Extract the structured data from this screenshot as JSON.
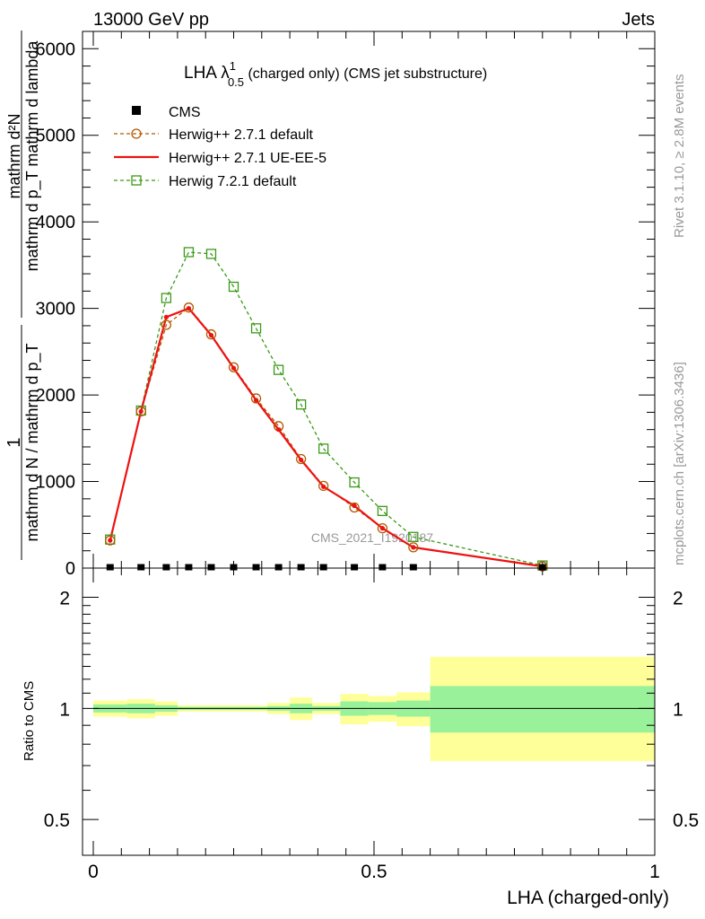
{
  "header": {
    "left": "13000 GeV pp",
    "right": "Jets"
  },
  "side_text": {
    "top": "Rivet 3.1.10, ≥ 2.8M events",
    "bottom": "mcplots.cern.ch [arXiv:1306.3436]"
  },
  "watermark": "CMS_2021_I1920187",
  "colors": {
    "cms": "#000000",
    "herwig_default": "#b35900",
    "herwig_ueee5": "#ee1111",
    "herwig721": "#3a9a17",
    "band_inner": "#99f299",
    "band_outer": "#ffff99"
  },
  "chart_data": [
    {
      "type": "line",
      "panel": "main",
      "title_main": "LHA λ",
      "title_sup": "1",
      "title_sub": "0.5",
      "title_rest": " (charged only) (CMS jet substructure)",
      "ylabel_top": "mathrm d²N",
      "ylabel_top_sub": "mathrm d p_T mathrm d lambda",
      "ylabel_one": "1",
      "ylabel_bottom": "mathrm d N / mathrm d p_T",
      "ylim": [
        0,
        6200
      ],
      "yticks": [
        0,
        1000,
        2000,
        3000,
        4000,
        5000,
        6000
      ],
      "ytick_labels": [
        "0",
        "1000",
        "2000",
        "3000",
        "4000",
        "5000",
        "6000"
      ],
      "xlim": [
        0,
        1
      ],
      "series": [
        {
          "name": "CMS",
          "style": "markers",
          "x": [
            0.03,
            0.085,
            0.13,
            0.17,
            0.21,
            0.25,
            0.29,
            0.33,
            0.37,
            0.41,
            0.465,
            0.515,
            0.57,
            0.8
          ],
          "y": [
            5,
            5,
            5,
            5,
            5,
            5,
            5,
            5,
            5,
            5,
            5,
            5,
            5,
            5
          ]
        },
        {
          "name": "Herwig++ 2.7.1 default",
          "style": "dashed-circle",
          "x": [
            0.03,
            0.085,
            0.13,
            0.17,
            0.21,
            0.25,
            0.29,
            0.33,
            0.37,
            0.41,
            0.465,
            0.515,
            0.57,
            0.8
          ],
          "y": [
            320,
            1810,
            2810,
            3010,
            2700,
            2320,
            1960,
            1640,
            1260,
            950,
            700,
            460,
            240,
            20
          ]
        },
        {
          "name": "Herwig++ 2.7.1 UE-EE-5",
          "style": "solid-dot",
          "x": [
            0.03,
            0.085,
            0.13,
            0.17,
            0.21,
            0.25,
            0.29,
            0.33,
            0.37,
            0.41,
            0.465,
            0.515,
            0.57,
            0.8
          ],
          "y": [
            320,
            1810,
            2900,
            3000,
            2690,
            2310,
            1940,
            1600,
            1250,
            940,
            720,
            460,
            240,
            20
          ]
        },
        {
          "name": "Herwig 7.2.1 default",
          "style": "dashed-square",
          "x": [
            0.03,
            0.085,
            0.13,
            0.17,
            0.21,
            0.25,
            0.29,
            0.33,
            0.37,
            0.41,
            0.465,
            0.515,
            0.57,
            0.8
          ],
          "y": [
            330,
            1820,
            3120,
            3650,
            3630,
            3250,
            2770,
            2290,
            1890,
            1380,
            990,
            660,
            360,
            30
          ]
        }
      ]
    },
    {
      "type": "area",
      "panel": "ratio",
      "ylabel": "Ratio to CMS",
      "xlabel": "LHA (charged-only)",
      "xlim": [
        0,
        1
      ],
      "ylim": [
        0.4,
        2.4
      ],
      "yscale": "log",
      "yticks": [
        0.5,
        1,
        2
      ],
      "ytick_labels": [
        "0.5",
        "1",
        "2"
      ],
      "xticks": [
        0,
        0.5,
        1
      ],
      "xtick_labels": [
        "0",
        "0.5",
        "1"
      ],
      "bin_edges": [
        0,
        0.06,
        0.11,
        0.15,
        0.19,
        0.23,
        0.27,
        0.31,
        0.35,
        0.39,
        0.44,
        0.49,
        0.54,
        0.6,
        1.0
      ],
      "inner_low": [
        0.975,
        0.97,
        0.98,
        0.99,
        0.99,
        0.99,
        0.99,
        0.985,
        0.97,
        0.985,
        0.955,
        0.96,
        0.95,
        0.86
      ],
      "inner_high": [
        1.025,
        1.03,
        1.02,
        1.01,
        1.01,
        1.01,
        1.01,
        1.015,
        1.03,
        1.015,
        1.045,
        1.04,
        1.05,
        1.15
      ],
      "outer_low": [
        0.95,
        0.94,
        0.955,
        0.98,
        0.98,
        0.98,
        0.98,
        0.965,
        0.93,
        0.965,
        0.905,
        0.92,
        0.895,
        0.72
      ],
      "outer_high": [
        1.05,
        1.06,
        1.045,
        1.02,
        1.02,
        1.02,
        1.02,
        1.035,
        1.07,
        1.035,
        1.095,
        1.08,
        1.105,
        1.38
      ],
      "reference": 1
    }
  ]
}
